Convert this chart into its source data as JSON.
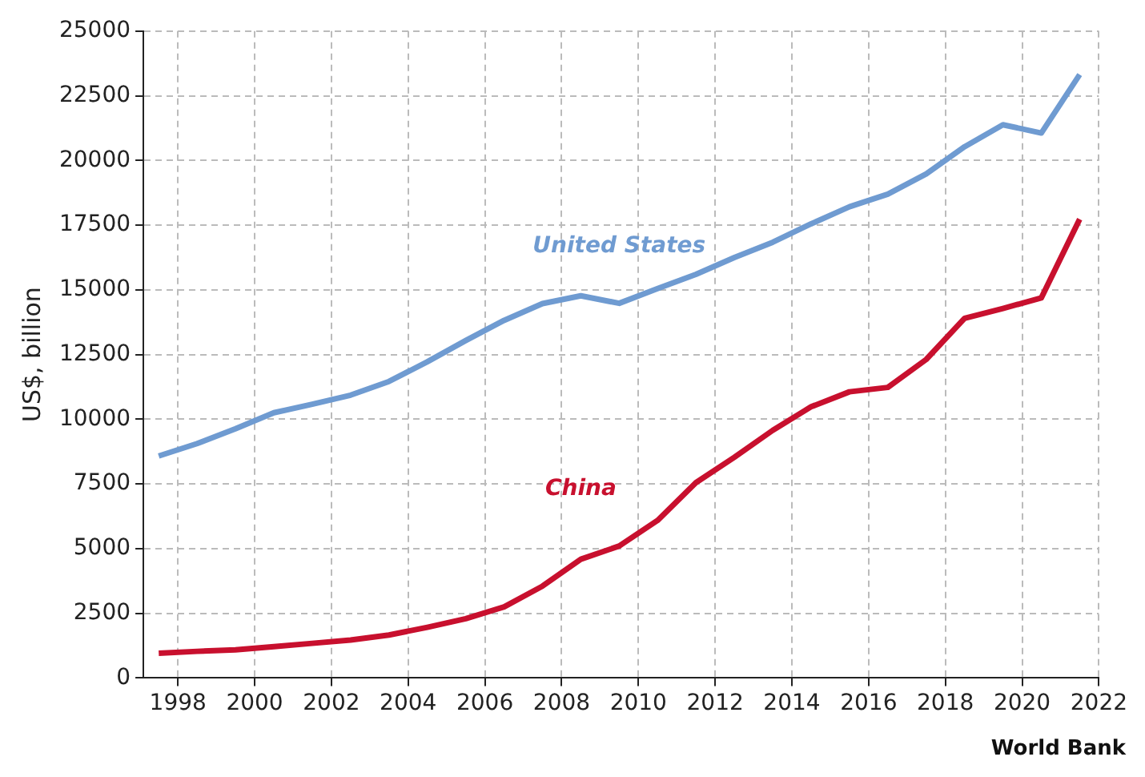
{
  "chart_data": {
    "type": "line",
    "x": [
      1997.5,
      1998.5,
      1999.5,
      2000.5,
      2001.5,
      2002.5,
      2003.5,
      2004.5,
      2005.5,
      2006.5,
      2007.5,
      2008.5,
      2009.5,
      2010.5,
      2011.5,
      2012.5,
      2013.5,
      2014.5,
      2015.5,
      2016.5,
      2017.5,
      2018.5,
      2019.5,
      2020.5,
      2021.5
    ],
    "series": [
      {
        "name": "United States",
        "color": "#6f9bd1",
        "values": [
          8580,
          9060,
          9630,
          10250,
          10580,
          10930,
          11460,
          12220,
          13040,
          13820,
          14470,
          14770,
          14480,
          15050,
          15600,
          16250,
          16840,
          17550,
          18210,
          18700,
          19480,
          20530,
          21380,
          21060,
          23320
        ]
      },
      {
        "name": "China",
        "color": "#c8102e",
        "values": [
          960,
          1030,
          1090,
          1210,
          1340,
          1470,
          1660,
          1960,
          2290,
          2750,
          3550,
          4590,
          5100,
          6090,
          7550,
          8530,
          9570,
          10480,
          11060,
          11230,
          12310,
          13900,
          14280,
          14690,
          17730
        ]
      }
    ],
    "ylabel": "US$, billion",
    "xlim": [
      1997.1,
      2022
    ],
    "xticks": [
      1998,
      2000,
      2002,
      2004,
      2006,
      2008,
      2010,
      2012,
      2014,
      2016,
      2018,
      2020,
      2022
    ],
    "ylim": [
      0,
      25000
    ],
    "yticks": [
      0,
      2500,
      5000,
      7500,
      10000,
      12500,
      15000,
      17500,
      20000,
      22500,
      25000
    ],
    "grid": true,
    "line_style": "solid",
    "marker": "none",
    "legend": false,
    "annotations": [
      "World Bank"
    ]
  }
}
